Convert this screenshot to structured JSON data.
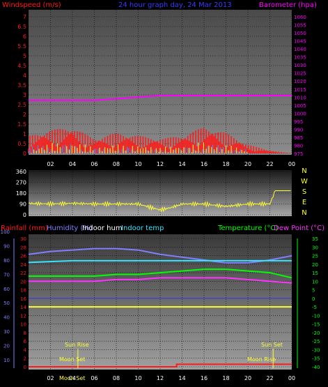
{
  "title": "24 hour graph day, 24 Mar 2013",
  "colors": {
    "wind": "#ff1a1a",
    "gust_low": "#3a8cff",
    "gust_yellow": "#ffff33",
    "baro": "#ff00ff",
    "wdir": "#ffff33",
    "rain": "#ff1a1a",
    "humidity": "#8080ff",
    "indoor_hum": "#ffffff",
    "indoor_temp": "#33e5ff",
    "temp": "#00ff00",
    "dew": "#ff33ff",
    "aux": "#ffff33",
    "axis_left": "#8080ff",
    "axis_right": "#00ff00"
  },
  "time_ticks": [
    "02",
    "04",
    "06",
    "08",
    "10",
    "12",
    "14",
    "16",
    "18",
    "20",
    "22",
    "00"
  ],
  "panel1": {
    "left_label": "Windspeed (m/s)",
    "right_label": "Barometer (hpa)",
    "left_ticks": [
      "7",
      "6.5",
      "6",
      "5.5",
      "5",
      "4.5",
      "4",
      "3.5",
      "3",
      "2.5",
      "2",
      "1.5",
      "1",
      "0.5",
      "0"
    ],
    "right_ticks": [
      "1060",
      "1055",
      "1050",
      "1045",
      "1040",
      "1035",
      "1030",
      "1025",
      "1020",
      "1015",
      "1010",
      "1005",
      "1000",
      "995",
      "990",
      "985",
      "980",
      "975"
    ]
  },
  "panel2": {
    "left_ticks": [
      "360",
      "270",
      "180",
      "90",
      "0"
    ],
    "right_letters": [
      "N",
      "W",
      "S",
      "E",
      "N"
    ]
  },
  "panel3": {
    "legend": {
      "rain": "Rainfall (mm)",
      "humidity": "Humidity (%)",
      "indoor_hum": "Indoor hum",
      "indoor_temp": "Indoor temp",
      "temp": "Temperature (°C)",
      "dew": "Dew Point (°C)"
    },
    "rain_ticks": [
      "30",
      "28",
      "26",
      "24",
      "22",
      "20",
      "18",
      "16",
      "14",
      "12",
      "10",
      "8",
      "6",
      "4",
      "2",
      "0"
    ],
    "hum_ticks": [
      "100",
      "90",
      "80",
      "70",
      "60",
      "50",
      "40",
      "30",
      "20",
      "10"
    ],
    "temp_ticks": [
      "35",
      "30",
      "25",
      "20",
      "15",
      "10",
      "5",
      "0",
      "-5",
      "-10",
      "-15",
      "-20",
      "-25",
      "-30",
      "-35",
      "-40"
    ],
    "annotations": {
      "sun_rise": "Sun Rise",
      "sun_set": "Sun Set",
      "moon_set": "Moon Set",
      "moon_rise": "Moon Rise",
      "moon_set_bottom": "Moon Set"
    }
  },
  "chart_data": [
    {
      "type": "line",
      "title": "24 hour graph day, 24 Mar 2013",
      "x_ticks": [
        "02",
        "04",
        "06",
        "08",
        "10",
        "12",
        "14",
        "16",
        "18",
        "20",
        "22",
        "00"
      ],
      "series": [
        {
          "name": "Windspeed (m/s)",
          "axis": "left",
          "ylim": [
            0,
            7
          ],
          "x": [
            0,
            2,
            4,
            6,
            8,
            10,
            12,
            14,
            16,
            18,
            20,
            22,
            24
          ],
          "values": [
            0.6,
            0.8,
            0.9,
            0.5,
            0.7,
            0.6,
            0.5,
            0.6,
            0.9,
            0.7,
            0.3,
            0.1,
            0.0
          ]
        },
        {
          "name": "Barometer (hpa)",
          "axis": "right",
          "ylim": [
            975,
            1060
          ],
          "x": [
            0,
            2,
            4,
            6,
            8,
            10,
            12,
            14,
            16,
            18,
            20,
            22,
            24
          ],
          "values": [
            1008,
            1008,
            1008,
            1008,
            1009,
            1010,
            1011,
            1011,
            1011,
            1011,
            1011,
            1011,
            1011
          ]
        }
      ]
    },
    {
      "type": "line",
      "ylabel": "wind direction",
      "ylim": [
        0,
        360
      ],
      "x": [
        0,
        2,
        4,
        6,
        8,
        10,
        12,
        13,
        14,
        16,
        18,
        20,
        22,
        22.5,
        24
      ],
      "values": [
        95,
        90,
        95,
        90,
        90,
        90,
        40,
        60,
        90,
        90,
        70,
        90,
        90,
        200,
        200
      ]
    },
    {
      "type": "line",
      "series": [
        {
          "name": "Rainfall (mm)",
          "axis": "left",
          "ylim": [
            0,
            30
          ],
          "x": [
            0,
            13.5,
            13.5,
            24
          ],
          "values": [
            0,
            0,
            0.6,
            0.6
          ]
        },
        {
          "name": "Humidity (%)",
          "axis": "left2",
          "ylim": [
            10,
            100
          ],
          "x": [
            0,
            2,
            4,
            6,
            8,
            10,
            12,
            14,
            16,
            18,
            20,
            22,
            24
          ],
          "values": [
            84,
            86,
            87,
            88,
            88,
            87,
            84,
            82,
            80,
            78,
            78,
            80,
            83
          ]
        },
        {
          "name": "Indoor temp",
          "axis": "right",
          "ylim": [
            -40,
            35
          ],
          "x": [
            0,
            4,
            8,
            12,
            16,
            20,
            24
          ],
          "values": [
            21,
            22,
            22,
            22,
            22,
            22,
            22
          ]
        },
        {
          "name": "Temperature (°C)",
          "axis": "right",
          "ylim": [
            -40,
            35
          ],
          "x": [
            0,
            2,
            4,
            6,
            8,
            10,
            12,
            14,
            16,
            18,
            20,
            22,
            24
          ],
          "values": [
            13,
            13,
            13,
            13,
            14,
            14,
            15,
            16,
            17,
            17,
            16,
            15,
            12
          ]
        },
        {
          "name": "Dew Point (°C)",
          "axis": "right",
          "ylim": [
            -40,
            35
          ],
          "x": [
            0,
            2,
            4,
            6,
            8,
            10,
            12,
            14,
            16,
            18,
            20,
            22,
            24
          ],
          "values": [
            10,
            10,
            10,
            10,
            11,
            11,
            12,
            12,
            12,
            12,
            11,
            10,
            9
          ]
        },
        {
          "name": "Indoor hum",
          "axis": "left",
          "ylim": [
            0,
            30
          ],
          "x": [
            0,
            2,
            4,
            6,
            8,
            10,
            12,
            14,
            16,
            18,
            20,
            22,
            24
          ],
          "values": [
            14,
            14,
            14,
            14,
            14,
            14,
            14,
            14,
            14,
            14,
            14,
            14,
            14
          ]
        }
      ]
    }
  ]
}
